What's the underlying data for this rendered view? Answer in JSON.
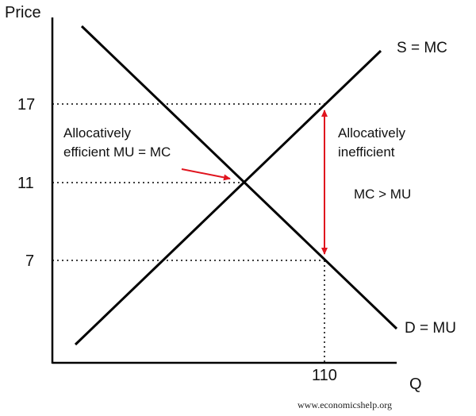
{
  "axes": {
    "y_label": "Price",
    "x_label": "Q"
  },
  "ticks": {
    "y_17": "17",
    "y_11": "11",
    "y_7": "7",
    "x_110": "110"
  },
  "curves": {
    "supply": "S = MC",
    "demand": "D = MU"
  },
  "annotations": {
    "efficient_line1": "Allocatively",
    "efficient_line2": "efficient MU = MC",
    "inefficient_line1": "Allocatively",
    "inefficient_line2": "inefficient",
    "mc_gt_mu": "MC > MU"
  },
  "footer": {
    "credit": "www.economicshelp.org"
  },
  "colors": {
    "curves": "#000000",
    "arrows": "#e0141e",
    "guides": "#000000"
  }
}
